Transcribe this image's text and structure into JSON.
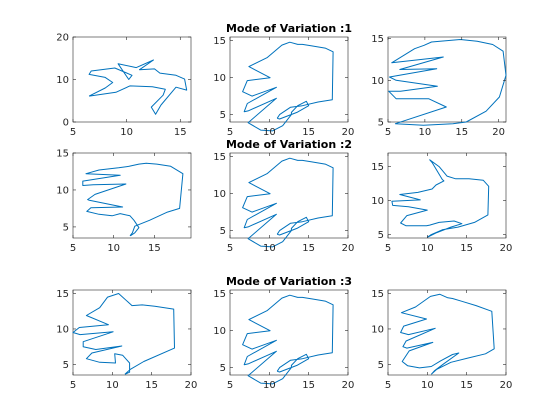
{
  "figure": {
    "line_color": "#0072BD",
    "axis_color": "#262626",
    "background": "#ffffff"
  },
  "chart_data": [
    {
      "type": "line",
      "title": "",
      "xlim": [
        5,
        16
      ],
      "ylim": [
        0,
        20
      ],
      "xticks": [
        5,
        10,
        15
      ],
      "yticks": [
        0,
        10,
        20
      ],
      "x": [
        6.5,
        8,
        8.7,
        8,
        6.5,
        6.7,
        8.9,
        10.5,
        10.2,
        9.2,
        10.9,
        12.5,
        11.2,
        12.6,
        13.1,
        14.6,
        15.4,
        15.6,
        14.6,
        13.2,
        12.7,
        12.3,
        13.4,
        13.6,
        12.4,
        10.3,
        9.0,
        6.5
      ],
      "y": [
        6.1,
        8,
        9.3,
        10.5,
        11.2,
        12,
        12.7,
        11,
        10,
        13.7,
        12.8,
        14.6,
        12.3,
        12.5,
        11.5,
        11.0,
        10.1,
        7.5,
        8.2,
        4,
        1.8,
        3.5,
        6.3,
        7.7,
        8.3,
        8.5,
        7.0,
        6.1
      ]
    },
    {
      "type": "line",
      "title": "Mode of Variation :1",
      "xlim": [
        5,
        20
      ],
      "ylim": [
        4,
        15.5
      ],
      "xticks": [
        5,
        10,
        15,
        20
      ],
      "yticks": [
        5,
        10,
        15
      ],
      "x": [
        11,
        11.3,
        12.7,
        14.2,
        16.2,
        18,
        18.1,
        17.1,
        15.4,
        14.2,
        13.6,
        12.6,
        11.6,
        9.7,
        7.4,
        10.1,
        7.2,
        6.6,
        7.8,
        10.9,
        7.2,
        6.8,
        7.3,
        10.9,
        7.3,
        8.9,
        10.4,
        11.7,
        12.8,
        12.8,
        13.6,
        14.7,
        15.0,
        13.5,
        11.3,
        11
      ],
      "y": [
        4.5,
        5,
        6,
        6.2,
        6.7,
        7,
        13.5,
        14,
        14.3,
        14.5,
        14.5,
        14.8,
        14.4,
        12.7,
        11.5,
        10,
        9.6,
        8.1,
        7.5,
        8.7,
        6.5,
        5.4,
        5.5,
        7.2,
        3.9,
        2.9,
        2.8,
        3.5,
        5.0,
        5.3,
        6.2,
        6.8,
        6.2,
        5.3,
        4.4,
        4.5
      ]
    },
    {
      "type": "line",
      "title": "",
      "xlim": [
        5,
        21
      ],
      "ylim": [
        5,
        15.2
      ],
      "xticks": [
        5,
        10,
        15,
        20
      ],
      "yticks": [
        5,
        10,
        15
      ],
      "x": [
        15.6,
        18.3,
        20.1,
        21,
        20.6,
        19.2,
        17.1,
        14.8,
        10.9,
        9.9,
        8.6,
        5.5,
        12.5,
        6.6,
        11.6,
        5.2,
        6.1,
        11.7,
        6.7,
        5.1,
        6.1,
        10.5,
        12.9,
        6.0,
        9.8,
        13.8,
        15.6
      ],
      "y": [
        5,
        6.3,
        8,
        10.6,
        13.5,
        14.3,
        14.7,
        14.9,
        14.6,
        14.2,
        13.8,
        12.1,
        12.8,
        11.3,
        11.4,
        10.4,
        10,
        9.3,
        8.7,
        8.7,
        7.8,
        7.8,
        6.8,
        4.8,
        4.6,
        4.8,
        5
      ]
    },
    {
      "type": "line",
      "title": "",
      "xlim": [
        5,
        19.5
      ],
      "ylim": [
        3.5,
        15
      ],
      "xticks": [
        5,
        10,
        15
      ],
      "yticks": [
        5,
        10,
        15
      ],
      "x": [
        12,
        12.3,
        12.6,
        14.4,
        16.6,
        18.1,
        18.5,
        17.0,
        15.3,
        14,
        13.1,
        11.9,
        10.6,
        8.2,
        6.6,
        10.8,
        6.2,
        6.2,
        7.5,
        11.5,
        7.7,
        6.8,
        7,
        11.1,
        7.2,
        6.7,
        8.2,
        9.8,
        10.8,
        12.0,
        12.5,
        13.1,
        12.6,
        12.2,
        12
      ],
      "y": [
        3.8,
        4.2,
        5.1,
        5.9,
        7,
        7.5,
        12.2,
        13.2,
        13.5,
        13.6,
        13.5,
        13.2,
        13.0,
        12.7,
        12.2,
        12.0,
        11.2,
        10.6,
        10.7,
        10.8,
        9.4,
        8.7,
        8.6,
        7.7,
        7.6,
        7.1,
        6.7,
        6.5,
        6.8,
        6.5,
        5.9,
        4.9,
        4.2,
        3.9,
        3.8
      ]
    },
    {
      "type": "line",
      "title": "Mode of Variation :2",
      "xlim": [
        5,
        20
      ],
      "ylim": [
        4,
        15.5
      ],
      "xticks": [
        5,
        10,
        15,
        20
      ],
      "yticks": [
        5,
        10,
        15
      ],
      "x": [
        11,
        11.3,
        12.7,
        14.2,
        16.2,
        18,
        18.1,
        17.1,
        15.4,
        14.2,
        13.6,
        12.6,
        11.6,
        9.7,
        7.4,
        10.1,
        7.2,
        6.6,
        7.8,
        10.9,
        7.2,
        6.8,
        7.3,
        10.9,
        7.3,
        8.9,
        10.4,
        11.7,
        12.8,
        12.8,
        13.6,
        14.7,
        15.0,
        13.5,
        11.3,
        11
      ],
      "y": [
        4.5,
        5,
        6,
        6.2,
        6.7,
        7,
        13.5,
        14,
        14.3,
        14.5,
        14.5,
        14.8,
        14.4,
        12.7,
        11.5,
        10,
        9.6,
        8.1,
        7.5,
        8.7,
        6.5,
        5.4,
        5.5,
        7.2,
        3.9,
        2.9,
        2.8,
        3.5,
        5.0,
        5.3,
        6.2,
        6.8,
        6.2,
        5.3,
        4.4,
        4.5
      ]
    },
    {
      "type": "line",
      "title": "",
      "xlim": [
        5,
        20
      ],
      "ylim": [
        4.5,
        17
      ],
      "xticks": [
        5,
        10,
        15,
        20
      ],
      "yticks": [
        5,
        10,
        15
      ],
      "x": [
        10,
        10.5,
        11.9,
        13.9,
        16,
        17.7,
        17.8,
        17.1,
        15.3,
        13.6,
        12.5,
        11.5,
        10.3,
        10.6,
        11.9,
        12.1,
        11.1,
        10.6,
        8.8,
        6.5,
        9.1,
        5.5,
        5.6,
        7.6,
        10,
        7.4,
        6.6,
        7.3,
        9.9,
        10.3,
        11.5,
        13.4,
        14.4,
        13.0,
        11.2,
        10
      ],
      "y": [
        4.6,
        5,
        5.7,
        6.1,
        6.8,
        7.9,
        12.1,
        13.0,
        13.2,
        13.2,
        13.6,
        15.0,
        16.0,
        15.6,
        13.1,
        12.9,
        12.3,
        11.7,
        11.2,
        10.9,
        10.1,
        9.9,
        9.3,
        9.1,
        8.6,
        7.8,
        6.7,
        6.3,
        6.3,
        6.4,
        6.8,
        7.0,
        6.6,
        6.1,
        5.3,
        4.6
      ]
    },
    {
      "type": "line",
      "title": "",
      "xlim": [
        5,
        20
      ],
      "ylim": [
        3.5,
        15.5
      ],
      "xticks": [
        5,
        10,
        15,
        20
      ],
      "yticks": [
        5,
        10,
        15
      ],
      "x": [
        11.6,
        12.3,
        14.0,
        17.9,
        17.8,
        15.4,
        13.8,
        12.5,
        10.8,
        9.4,
        8.4,
        6.7,
        9.5,
        5.8,
        5.0,
        5.9,
        10.1,
        6.3,
        6.3,
        7.9,
        11.2,
        7.4,
        6.7,
        8.4,
        10.4,
        10.3,
        11.3,
        12.2,
        12.2,
        11.6
      ],
      "y": [
        3.6,
        4.3,
        5.4,
        7.3,
        12.8,
        13.2,
        13.4,
        13.3,
        15.0,
        14.5,
        13.0,
        11.9,
        10.6,
        10.2,
        9.5,
        9.2,
        9.6,
        8.2,
        7.5,
        7.1,
        7.6,
        6.6,
        5.8,
        5.3,
        5.2,
        6.5,
        6.3,
        5.2,
        3.9,
        3.6
      ]
    },
    {
      "type": "line",
      "title": "Mode of Variation :3",
      "xlim": [
        5,
        20
      ],
      "ylim": [
        4,
        15.5
      ],
      "xticks": [
        5,
        10,
        15,
        20
      ],
      "yticks": [
        5,
        10,
        15
      ],
      "x": [
        11,
        11.3,
        12.7,
        14.2,
        16.2,
        18,
        18.1,
        17.1,
        15.4,
        14.2,
        13.6,
        12.6,
        11.6,
        9.7,
        7.4,
        10.1,
        7.2,
        6.6,
        7.8,
        10.9,
        7.2,
        6.8,
        7.3,
        10.9,
        7.3,
        8.9,
        10.4,
        11.7,
        12.8,
        12.8,
        13.6,
        14.7,
        15.0,
        13.5,
        11.3,
        11
      ],
      "y": [
        4.5,
        5,
        6,
        6.2,
        6.7,
        7,
        13.5,
        14,
        14.3,
        14.5,
        14.5,
        14.8,
        14.4,
        12.7,
        11.5,
        10,
        9.6,
        8.1,
        7.5,
        8.7,
        6.5,
        5.4,
        5.5,
        7.2,
        3.9,
        2.9,
        2.8,
        3.5,
        5.0,
        5.3,
        6.2,
        6.8,
        6.2,
        5.3,
        4.4,
        4.5
      ]
    },
    {
      "type": "line",
      "title": "",
      "xlim": [
        5,
        20
      ],
      "ylim": [
        3.5,
        15.5
      ],
      "xticks": [
        5,
        10,
        15,
        20
      ],
      "yticks": [
        5,
        10,
        15
      ],
      "x": [
        10.5,
        11.2,
        13.0,
        15.2,
        17.4,
        18.5,
        18.2,
        16.2,
        14.4,
        13.2,
        12.6,
        11.6,
        10.4,
        8.5,
        6.7,
        9.9,
        7.0,
        6.6,
        7.6,
        11.0,
        7.3,
        6.9,
        7.4,
        10.7,
        7.7,
        6.8,
        7.5,
        9.0,
        10.5,
        11.7,
        13.2,
        14.0,
        12.1,
        10.9,
        10.5
      ],
      "y": [
        3.6,
        4.3,
        5.3,
        5.9,
        6.5,
        7.2,
        12.5,
        13.3,
        13.9,
        14.3,
        14.4,
        14.9,
        14.6,
        13.1,
        12.3,
        11.4,
        10.4,
        9.5,
        9.2,
        10.1,
        8.3,
        7.5,
        7.3,
        8.1,
        6.9,
        5.4,
        4.8,
        4.5,
        4.7,
        5.5,
        6.4,
        6.6,
        5.1,
        4.1,
        3.6
      ]
    }
  ]
}
